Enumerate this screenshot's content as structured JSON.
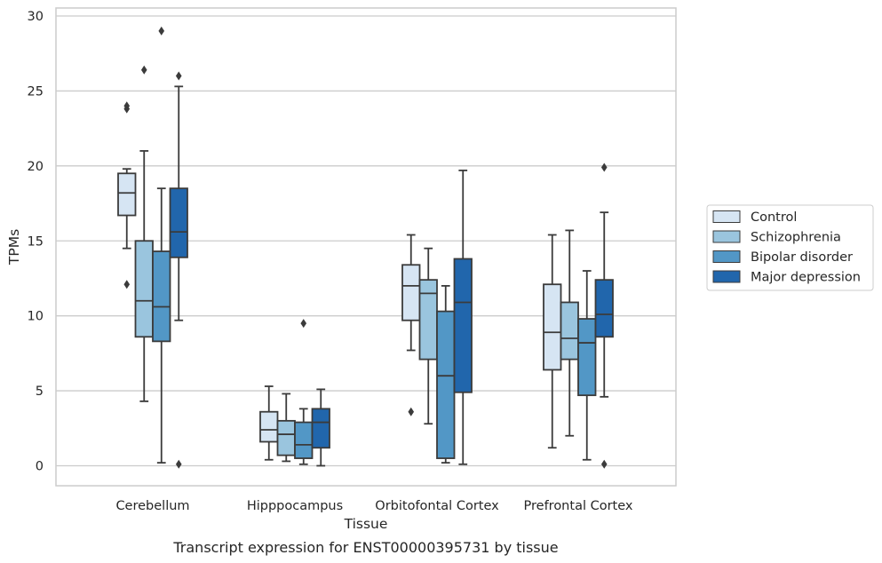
{
  "caption": "Transcript expression for ENST00000395731 by tissue",
  "chart_data": {
    "type": "box",
    "title": "",
    "xlabel": "Tissue",
    "ylabel": "TPMs",
    "ylim": [
      -1.3,
      30.5
    ],
    "yticks": [
      0,
      5,
      10,
      15,
      20,
      25,
      30
    ],
    "grid": "horizontal",
    "legend_position": "right",
    "categories": [
      "Cerebellum",
      "Hipppocampus",
      "Orbitofontal Cortex",
      "Prefrontal Cortex"
    ],
    "series": [
      {
        "name": "Control",
        "color": "#d6e5f3",
        "boxes": [
          {
            "whislo": 14.5,
            "q1": 16.7,
            "med": 18.2,
            "q3": 19.5,
            "whishi": 19.8,
            "fliers": [
              12.1,
              23.8,
              24.0
            ]
          },
          {
            "whislo": 0.4,
            "q1": 1.6,
            "med": 2.4,
            "q3": 3.6,
            "whishi": 5.3,
            "fliers": []
          },
          {
            "whislo": 7.7,
            "q1": 9.7,
            "med": 12.0,
            "q3": 13.4,
            "whishi": 15.4,
            "fliers": [
              3.6
            ]
          },
          {
            "whislo": 1.2,
            "q1": 6.4,
            "med": 8.9,
            "q3": 12.1,
            "whishi": 15.4,
            "fliers": []
          }
        ]
      },
      {
        "name": "Schizophrenia",
        "color": "#9ac5de",
        "boxes": [
          {
            "whislo": 4.3,
            "q1": 8.6,
            "med": 11.0,
            "q3": 15.0,
            "whishi": 21.0,
            "fliers": [
              26.4
            ]
          },
          {
            "whislo": 0.3,
            "q1": 0.7,
            "med": 2.1,
            "q3": 3.0,
            "whishi": 4.8,
            "fliers": []
          },
          {
            "whislo": 2.8,
            "q1": 7.1,
            "med": 11.5,
            "q3": 12.4,
            "whishi": 14.5,
            "fliers": []
          },
          {
            "whislo": 2.0,
            "q1": 7.1,
            "med": 8.5,
            "q3": 10.9,
            "whishi": 15.7,
            "fliers": []
          }
        ]
      },
      {
        "name": "Bipolar disorder",
        "color": "#5297c6",
        "boxes": [
          {
            "whislo": 0.2,
            "q1": 8.3,
            "med": 10.6,
            "q3": 14.3,
            "whishi": 18.5,
            "fliers": [
              29.0
            ]
          },
          {
            "whislo": 0.1,
            "q1": 0.5,
            "med": 1.4,
            "q3": 2.9,
            "whishi": 3.8,
            "fliers": [
              9.5
            ]
          },
          {
            "whislo": 0.2,
            "q1": 0.5,
            "med": 6.0,
            "q3": 10.3,
            "whishi": 12.0,
            "fliers": []
          },
          {
            "whislo": 0.4,
            "q1": 4.7,
            "med": 8.2,
            "q3": 9.8,
            "whishi": 13.0,
            "fliers": []
          }
        ]
      },
      {
        "name": "Major depression",
        "color": "#2166ac",
        "boxes": [
          {
            "whislo": 9.7,
            "q1": 13.9,
            "med": 15.6,
            "q3": 18.5,
            "whishi": 25.3,
            "fliers": [
              0.1,
              26.0
            ]
          },
          {
            "whislo": 0.0,
            "q1": 1.2,
            "med": 2.9,
            "q3": 3.8,
            "whishi": 5.1,
            "fliers": []
          },
          {
            "whislo": 0.1,
            "q1": 4.9,
            "med": 10.9,
            "q3": 13.8,
            "whishi": 19.7,
            "fliers": []
          },
          {
            "whislo": 4.6,
            "q1": 8.6,
            "med": 10.1,
            "q3": 12.4,
            "whishi": 16.9,
            "fliers": [
              0.1,
              19.9
            ]
          }
        ]
      }
    ]
  }
}
